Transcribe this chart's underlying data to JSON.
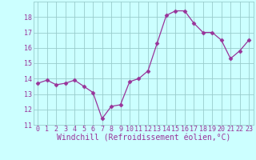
{
  "x": [
    0,
    1,
    2,
    3,
    4,
    5,
    6,
    7,
    8,
    9,
    10,
    11,
    12,
    13,
    14,
    15,
    16,
    17,
    18,
    19,
    20,
    21,
    22,
    23
  ],
  "y": [
    13.7,
    13.9,
    13.6,
    13.7,
    13.9,
    13.5,
    13.1,
    11.4,
    12.2,
    12.3,
    13.8,
    14.0,
    14.5,
    16.3,
    18.1,
    18.4,
    18.4,
    17.6,
    17.0,
    17.0,
    16.5,
    15.3,
    15.8,
    16.5
  ],
  "line_color": "#993399",
  "marker": "D",
  "marker_size": 2.5,
  "bg_color": "#ccffff",
  "grid_color": "#99cccc",
  "xlabel": "Windchill (Refroidissement éolien,°C)",
  "xlim": [
    -0.5,
    23.5
  ],
  "ylim": [
    11,
    19
  ],
  "yticks": [
    11,
    12,
    13,
    14,
    15,
    16,
    17,
    18
  ],
  "xtick_labels": [
    "0",
    "1",
    "2",
    "3",
    "4",
    "5",
    "6",
    "7",
    "8",
    "9",
    "10",
    "11",
    "12",
    "13",
    "14",
    "15",
    "16",
    "17",
    "18",
    "19",
    "20",
    "21",
    "22",
    "23"
  ],
  "font_color": "#993399",
  "font_size": 6,
  "xlabel_fontsize": 7
}
